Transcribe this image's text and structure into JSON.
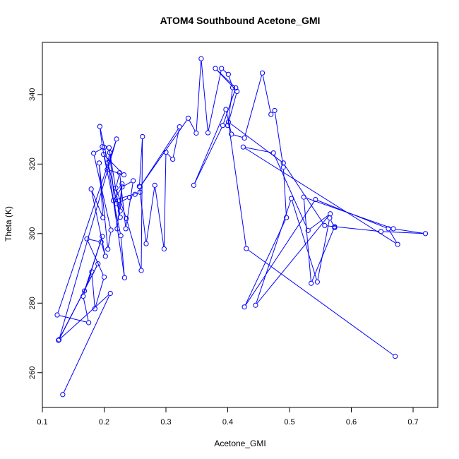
{
  "chart_data": {
    "type": "line",
    "title": "ATOM4 Southbound Acetone_GMI",
    "xlabel": "Acetone_GMI",
    "ylabel": "Theta (K)",
    "xlim": [
      0.1,
      0.74
    ],
    "ylim": [
      250,
      355
    ],
    "xticks": [
      "0.1",
      "0.2",
      "0.3",
      "0.4",
      "0.5",
      "0.6",
      "0.7"
    ],
    "yticks": [
      "260",
      "280",
      "300",
      "320",
      "340"
    ],
    "grid": false,
    "legend": "none",
    "marker": "open circle",
    "color": "#0000ff",
    "series": [
      {
        "x": [
          0.133,
          0.21,
          0.126,
          0.19,
          0.127,
          0.22,
          0.124,
          0.175,
          0.166,
          0.197,
          0.168,
          0.18,
          0.185,
          0.2,
          0.172,
          0.195,
          0.202,
          0.179,
          0.198,
          0.192,
          0.206,
          0.211,
          0.183,
          0.2,
          0.208,
          0.226,
          0.193,
          0.197,
          0.205,
          0.232,
          0.199,
          0.227,
          0.233,
          0.206,
          0.209,
          0.221,
          0.229,
          0.226,
          0.22,
          0.241,
          0.25,
          0.258,
          0.215,
          0.229,
          0.247,
          0.235,
          0.225,
          0.219,
          0.236,
          0.26,
          0.262,
          0.257,
          0.268,
          0.282,
          0.297,
          0.3,
          0.311,
          0.322,
          0.258,
          0.336,
          0.349,
          0.357,
          0.368,
          0.39,
          0.401,
          0.408,
          0.4,
          0.415,
          0.38,
          0.413,
          0.392,
          0.345,
          0.397,
          0.406,
          0.427,
          0.456,
          0.47,
          0.476,
          0.49,
          0.495,
          0.427,
          0.542,
          0.66,
          0.675,
          0.425,
          0.474,
          0.53,
          0.566,
          0.445,
          0.503,
          0.545,
          0.565,
          0.573,
          0.573,
          0.535,
          0.523,
          0.668,
          0.72,
          0.648,
          0.557,
          0.49,
          0.401,
          0.43,
          0.671
        ],
        "y": [
          253.7,
          282.8,
          269.3,
          291.3,
          269.5,
          327.2,
          276.6,
          274.4,
          282,
          299.2,
          283.5,
          289,
          278.4,
          287.5,
          298.5,
          297.6,
          293.5,
          312.8,
          304.6,
          320.3,
          295.5,
          301,
          323.1,
          324.8,
          324.7,
          304.7,
          330.8,
          325,
          318.4,
          316.9,
          322.8,
          299.4,
          287.3,
          320.4,
          323.3,
          301.4,
          314.3,
          306.5,
          308.6,
          310.4,
          311.3,
          311.9,
          309.5,
          313.4,
          315.2,
          301.4,
          317.5,
          313.1,
          304.3,
          289.4,
          327.9,
          313.6,
          297.1,
          313.9,
          295.6,
          323.4,
          321.4,
          330.7,
          313.4,
          333.2,
          328.9,
          350.3,
          329,
          347.5,
          345.8,
          342,
          331.1,
          340.9,
          347.5,
          341.9,
          331.1,
          313.9,
          335.7,
          328.6,
          327.5,
          346.2,
          334.3,
          335.4,
          319.1,
          304.6,
          278.9,
          309.8,
          301.4,
          296.9,
          324.9,
          323.2,
          300.9,
          305.7,
          279.4,
          310.1,
          286.1,
          304.5,
          301.7,
          302,
          285.7,
          310.5,
          301.4,
          300,
          300.6,
          302.3,
          320.3,
          332.1,
          295.7,
          264.7
        ]
      }
    ]
  }
}
